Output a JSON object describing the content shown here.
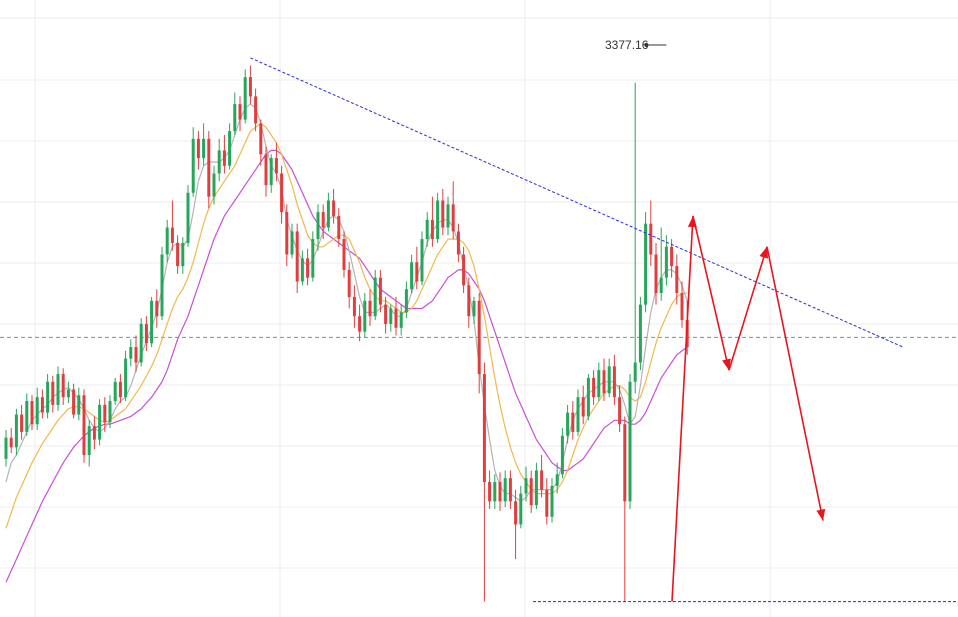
{
  "chart_data": {
    "type": "candlestick",
    "peak_label": "3377.16",
    "colors": {
      "up": "#26a65b",
      "down": "#e03e3e",
      "ma_gray": "#b4b4b4",
      "ma_orange": "#f2b84b",
      "ma_purple": "#c94fd6",
      "trendline": "#2a2ad8",
      "dashed_level": "#4fa88b",
      "annotation": "#e8141e",
      "grid": "#eeeeee"
    },
    "grid": true,
    "y_range": [
      3100,
      3420
    ],
    "resistance_line": {
      "from": 3390,
      "to": 3240
    },
    "support_level": 3108,
    "dashed_level": 3245,
    "candles": [
      [
        3182,
        3193,
        3178,
        3197
      ],
      [
        3193,
        3188,
        3185,
        3198
      ],
      [
        3188,
        3205,
        3184,
        3208
      ],
      [
        3205,
        3196,
        3192,
        3210
      ],
      [
        3196,
        3212,
        3194,
        3216
      ],
      [
        3212,
        3200,
        3197,
        3215
      ],
      [
        3200,
        3214,
        3197,
        3219
      ],
      [
        3214,
        3206,
        3203,
        3218
      ],
      [
        3206,
        3222,
        3203,
        3226
      ],
      [
        3222,
        3210,
        3206,
        3225
      ],
      [
        3210,
        3226,
        3207,
        3230
      ],
      [
        3226,
        3214,
        3210,
        3229
      ],
      [
        3214,
        3218,
        3211,
        3222
      ],
      [
        3218,
        3205,
        3203,
        3221
      ],
      [
        3205,
        3215,
        3202,
        3219
      ],
      [
        3215,
        3184,
        3180,
        3218
      ],
      [
        3184,
        3199,
        3178,
        3202
      ],
      [
        3199,
        3192,
        3187,
        3204
      ],
      [
        3192,
        3210,
        3189,
        3213
      ],
      [
        3210,
        3201,
        3196,
        3214
      ],
      [
        3201,
        3212,
        3198,
        3215
      ],
      [
        3212,
        3222,
        3210,
        3224
      ],
      [
        3222,
        3214,
        3211,
        3226
      ],
      [
        3214,
        3234,
        3212,
        3238
      ],
      [
        3234,
        3240,
        3230,
        3244
      ],
      [
        3240,
        3232,
        3227,
        3246
      ],
      [
        3232,
        3252,
        3230,
        3255
      ],
      [
        3252,
        3242,
        3238,
        3256
      ],
      [
        3242,
        3264,
        3240,
        3266
      ],
      [
        3264,
        3256,
        3250,
        3270
      ],
      [
        3256,
        3288,
        3254,
        3292
      ],
      [
        3288,
        3302,
        3284,
        3306
      ],
      [
        3302,
        3294,
        3290,
        3316
      ],
      [
        3294,
        3282,
        3278,
        3298
      ],
      [
        3282,
        3294,
        3278,
        3297
      ],
      [
        3294,
        3320,
        3292,
        3324
      ],
      [
        3320,
        3348,
        3318,
        3354
      ],
      [
        3348,
        3338,
        3332,
        3352
      ],
      [
        3338,
        3348,
        3334,
        3356
      ],
      [
        3348,
        3318,
        3312,
        3352
      ],
      [
        3318,
        3330,
        3314,
        3334
      ],
      [
        3330,
        3342,
        3326,
        3348
      ],
      [
        3342,
        3334,
        3330,
        3350
      ],
      [
        3334,
        3352,
        3332,
        3356
      ],
      [
        3352,
        3366,
        3350,
        3372
      ],
      [
        3366,
        3358,
        3352,
        3370
      ],
      [
        3358,
        3380,
        3356,
        3384
      ],
      [
        3380,
        3370,
        3366,
        3386
      ],
      [
        3370,
        3356,
        3352,
        3374
      ],
      [
        3356,
        3340,
        3334,
        3358
      ],
      [
        3340,
        3324,
        3318,
        3344
      ],
      [
        3324,
        3338,
        3320,
        3340
      ],
      [
        3338,
        3330,
        3326,
        3346
      ],
      [
        3330,
        3310,
        3304,
        3334
      ],
      [
        3310,
        3288,
        3282,
        3314
      ],
      [
        3288,
        3300,
        3286,
        3304
      ],
      [
        3300,
        3274,
        3268,
        3304
      ],
      [
        3274,
        3286,
        3272,
        3290
      ],
      [
        3286,
        3276,
        3272,
        3291
      ],
      [
        3276,
        3296,
        3274,
        3300
      ],
      [
        3296,
        3310,
        3290,
        3314
      ],
      [
        3310,
        3302,
        3296,
        3314
      ],
      [
        3302,
        3316,
        3300,
        3320
      ],
      [
        3316,
        3308,
        3304,
        3322
      ],
      [
        3308,
        3296,
        3292,
        3312
      ],
      [
        3296,
        3280,
        3276,
        3300
      ],
      [
        3280,
        3266,
        3260,
        3284
      ],
      [
        3266,
        3256,
        3250,
        3272
      ],
      [
        3256,
        3248,
        3243,
        3262
      ],
      [
        3248,
        3264,
        3245,
        3268
      ],
      [
        3264,
        3256,
        3251,
        3270
      ],
      [
        3256,
        3276,
        3254,
        3280
      ],
      [
        3276,
        3262,
        3258,
        3280
      ],
      [
        3262,
        3252,
        3247,
        3266
      ],
      [
        3252,
        3260,
        3248,
        3262
      ],
      [
        3260,
        3250,
        3246,
        3266
      ],
      [
        3250,
        3258,
        3246,
        3262
      ],
      [
        3258,
        3270,
        3255,
        3274
      ],
      [
        3270,
        3284,
        3268,
        3288
      ],
      [
        3284,
        3274,
        3270,
        3292
      ],
      [
        3274,
        3296,
        3272,
        3300
      ],
      [
        3296,
        3306,
        3292,
        3310
      ],
      [
        3306,
        3296,
        3292,
        3318
      ],
      [
        3296,
        3316,
        3294,
        3320
      ],
      [
        3316,
        3302,
        3298,
        3322
      ],
      [
        3302,
        3314,
        3298,
        3318
      ],
      [
        3314,
        3300,
        3296,
        3326
      ],
      [
        3300,
        3288,
        3284,
        3304
      ],
      [
        3288,
        3272,
        3268,
        3292
      ],
      [
        3272,
        3256,
        3250,
        3276
      ],
      [
        3256,
        3264,
        3252,
        3266
      ],
      [
        3264,
        3226,
        3216,
        3268
      ],
      [
        3226,
        3170,
        3108,
        3232
      ],
      [
        3170,
        3160,
        3156,
        3176
      ],
      [
        3160,
        3170,
        3156,
        3174
      ],
      [
        3170,
        3160,
        3155,
        3175
      ],
      [
        3160,
        3172,
        3157,
        3176
      ],
      [
        3172,
        3160,
        3156,
        3176
      ],
      [
        3160,
        3148,
        3130,
        3166
      ],
      [
        3148,
        3164,
        3146,
        3168
      ],
      [
        3164,
        3172,
        3160,
        3178
      ],
      [
        3172,
        3158,
        3154,
        3176
      ],
      [
        3158,
        3176,
        3156,
        3180
      ],
      [
        3176,
        3166,
        3162,
        3184
      ],
      [
        3166,
        3152,
        3148,
        3172
      ],
      [
        3152,
        3168,
        3149,
        3172
      ],
      [
        3168,
        3174,
        3164,
        3180
      ],
      [
        3174,
        3194,
        3172,
        3198
      ],
      [
        3194,
        3206,
        3190,
        3210
      ],
      [
        3206,
        3196,
        3192,
        3212
      ],
      [
        3196,
        3214,
        3194,
        3218
      ],
      [
        3214,
        3204,
        3200,
        3220
      ],
      [
        3204,
        3224,
        3202,
        3226
      ],
      [
        3224,
        3214,
        3210,
        3228
      ],
      [
        3214,
        3228,
        3212,
        3232
      ],
      [
        3228,
        3216,
        3212,
        3234
      ],
      [
        3216,
        3230,
        3214,
        3234
      ],
      [
        3230,
        3214,
        3210,
        3236
      ],
      [
        3214,
        3200,
        3196,
        3220
      ],
      [
        3200,
        3160,
        3108,
        3204
      ],
      [
        3160,
        3222,
        3156,
        3226
      ],
      [
        3222,
        3232,
        3216,
        3377
      ],
      [
        3232,
        3262,
        3228,
        3266
      ],
      [
        3262,
        3304,
        3258,
        3310
      ],
      [
        3304,
        3288,
        3282,
        3316
      ],
      [
        3288,
        3268,
        3262,
        3294
      ],
      [
        3268,
        3276,
        3264,
        3302
      ],
      [
        3276,
        3292,
        3272,
        3298
      ],
      [
        3292,
        3282,
        3276,
        3296
      ],
      [
        3282,
        3268,
        3262,
        3288
      ],
      [
        3268,
        3254,
        3250,
        3274
      ],
      [
        3254,
        3240,
        3236,
        3264
      ]
    ],
    "ma_gray": [
      3170,
      3180,
      3184,
      3190,
      3196,
      3202,
      3205,
      3208,
      3210,
      3214,
      3216,
      3218,
      3219,
      3216,
      3213,
      3208,
      3202,
      3198,
      3196,
      3198,
      3202,
      3208,
      3212,
      3214,
      3220,
      3228,
      3236,
      3243,
      3250,
      3258,
      3270,
      3284,
      3292,
      3294,
      3292,
      3296,
      3310,
      3326,
      3334,
      3336,
      3336,
      3336,
      3338,
      3342,
      3350,
      3358,
      3364,
      3366,
      3364,
      3356,
      3344,
      3334,
      3330,
      3322,
      3306,
      3298,
      3290,
      3285,
      3282,
      3285,
      3292,
      3300,
      3306,
      3308,
      3306,
      3300,
      3290,
      3278,
      3266,
      3258,
      3258,
      3258,
      3260,
      3262,
      3260,
      3256,
      3256,
      3260,
      3268,
      3276,
      3284,
      3294,
      3300,
      3304,
      3306,
      3306,
      3302,
      3294,
      3282,
      3270,
      3254,
      3230,
      3210,
      3192,
      3176,
      3168,
      3164,
      3164,
      3162,
      3160,
      3162,
      3166,
      3166,
      3166,
      3166,
      3166,
      3170,
      3180,
      3192,
      3202,
      3208,
      3212,
      3216,
      3218,
      3220,
      3222,
      3222,
      3222,
      3218,
      3210,
      3200,
      3204,
      3220,
      3240,
      3258,
      3270,
      3276,
      3280,
      3280,
      3278,
      3272,
      3264
    ],
    "ma_orange": [
      3146,
      3154,
      3162,
      3168,
      3174,
      3180,
      3185,
      3190,
      3194,
      3198,
      3202,
      3205,
      3208,
      3209,
      3209,
      3208,
      3206,
      3204,
      3202,
      3201,
      3202,
      3204,
      3206,
      3208,
      3212,
      3216,
      3220,
      3225,
      3230,
      3236,
      3244,
      3252,
      3260,
      3266,
      3270,
      3276,
      3284,
      3294,
      3304,
      3312,
      3318,
      3322,
      3326,
      3330,
      3334,
      3340,
      3346,
      3352,
      3354,
      3356,
      3354,
      3350,
      3346,
      3340,
      3332,
      3324,
      3314,
      3306,
      3298,
      3294,
      3292,
      3292,
      3294,
      3296,
      3298,
      3298,
      3296,
      3290,
      3284,
      3276,
      3270,
      3266,
      3264,
      3264,
      3262,
      3260,
      3258,
      3258,
      3260,
      3264,
      3270,
      3276,
      3282,
      3288,
      3292,
      3296,
      3296,
      3296,
      3294,
      3290,
      3282,
      3270,
      3256,
      3240,
      3224,
      3210,
      3198,
      3188,
      3180,
      3174,
      3170,
      3166,
      3164,
      3164,
      3164,
      3164,
      3166,
      3170,
      3176,
      3184,
      3192,
      3198,
      3204,
      3208,
      3212,
      3216,
      3218,
      3220,
      3220,
      3218,
      3214,
      3212,
      3214,
      3222,
      3232,
      3242,
      3250,
      3256,
      3262,
      3266,
      3268,
      3268
    ],
    "ma_purple": [
      3118,
      3124,
      3130,
      3136,
      3142,
      3148,
      3154,
      3160,
      3165,
      3170,
      3175,
      3180,
      3184,
      3188,
      3191,
      3194,
      3196,
      3198,
      3199,
      3200,
      3200,
      3201,
      3202,
      3203,
      3204,
      3206,
      3208,
      3211,
      3214,
      3218,
      3222,
      3228,
      3236,
      3244,
      3250,
      3256,
      3264,
      3272,
      3280,
      3288,
      3296,
      3302,
      3308,
      3312,
      3316,
      3320,
      3324,
      3328,
      3332,
      3336,
      3340,
      3342,
      3342,
      3340,
      3336,
      3332,
      3326,
      3320,
      3314,
      3308,
      3304,
      3300,
      3298,
      3296,
      3294,
      3292,
      3290,
      3288,
      3286,
      3282,
      3278,
      3274,
      3270,
      3268,
      3266,
      3264,
      3262,
      3260,
      3260,
      3260,
      3260,
      3262,
      3264,
      3268,
      3272,
      3276,
      3278,
      3280,
      3280,
      3278,
      3274,
      3270,
      3264,
      3256,
      3248,
      3240,
      3232,
      3224,
      3216,
      3210,
      3204,
      3198,
      3192,
      3188,
      3184,
      3180,
      3178,
      3176,
      3176,
      3178,
      3180,
      3182,
      3186,
      3190,
      3194,
      3198,
      3200,
      3202,
      3202,
      3202,
      3200,
      3200,
      3202,
      3206,
      3212,
      3218,
      3224,
      3228,
      3232,
      3236,
      3238,
      3240
    ],
    "arrows": [
      {
        "from": [
          3130,
          3108
        ],
        "to": [
          3308,
          3308
        ]
      },
      {
        "from": [
          3310,
          3308
        ],
        "to": [
          3228,
          3228
        ]
      },
      {
        "from": [
          3228,
          3228
        ],
        "to": [
          3292,
          3292
        ]
      },
      {
        "from": [
          3292,
          3292
        ],
        "to": [
          3150,
          3150
        ]
      }
    ]
  }
}
